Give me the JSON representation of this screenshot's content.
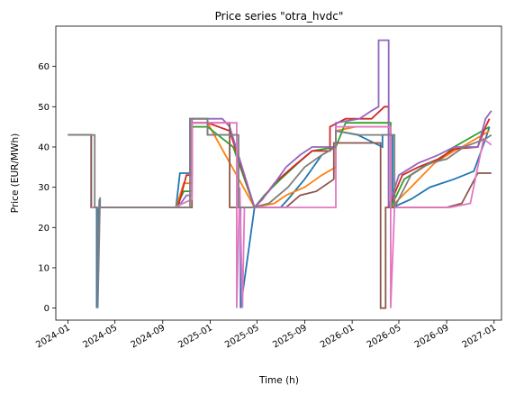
{
  "chart_data": {
    "type": "line",
    "title": "Price series \"otra_hvdc\"",
    "xlabel": "Time (h)",
    "ylabel": "Price (EUR/MWh)",
    "x_ticks": [
      "2024-01",
      "2024-05",
      "2024-09",
      "2025-01",
      "2025-05",
      "2025-09",
      "2026-01",
      "2026-05",
      "2026-09",
      "2027-01"
    ],
    "y_ticks": [
      0,
      10,
      20,
      30,
      40,
      50,
      60
    ],
    "xlim": [
      "2023-12-01",
      "2027-01-20"
    ],
    "ylim": [
      -3,
      70
    ],
    "grid": false,
    "legend": "none",
    "series": [
      {
        "color": "#1f77b4",
        "points": [
          [
            "2024-01-01",
            43
          ],
          [
            "2024-03-01",
            43
          ],
          [
            "2024-03-01",
            25
          ],
          [
            "2024-03-15",
            25
          ],
          [
            "2024-03-15",
            0
          ],
          [
            "2024-03-22",
            27
          ],
          [
            "2024-03-22",
            25
          ],
          [
            "2024-10-05",
            25
          ],
          [
            "2024-10-15",
            33.5
          ],
          [
            "2024-11-10",
            33.5
          ],
          [
            "2024-11-10",
            47
          ],
          [
            "2024-12-25",
            47
          ],
          [
            "2024-12-25",
            43
          ],
          [
            "2025-03-10",
            43
          ],
          [
            "2025-03-10",
            25
          ],
          [
            "2025-03-20",
            25
          ],
          [
            "2025-03-20",
            0
          ],
          [
            "2025-04-25",
            25
          ],
          [
            "2025-07-01",
            25
          ],
          [
            "2025-07-20",
            27
          ],
          [
            "2025-09-01",
            32
          ],
          [
            "2025-10-15",
            38
          ],
          [
            "2025-11-20",
            40
          ],
          [
            "2025-11-20",
            44
          ],
          [
            "2026-01-15",
            43
          ],
          [
            "2026-03-20",
            40
          ],
          [
            "2026-03-20",
            43
          ],
          [
            "2026-04-15",
            43
          ],
          [
            "2026-04-15",
            25
          ],
          [
            "2026-06-01",
            27
          ],
          [
            "2026-07-20",
            30
          ],
          [
            "2026-09-20",
            32
          ],
          [
            "2026-11-10",
            34
          ],
          [
            "2026-12-10",
            42
          ],
          [
            "2026-12-20",
            45
          ]
        ]
      },
      {
        "color": "#ff7f0e",
        "points": [
          [
            "2024-03-01",
            25
          ],
          [
            "2024-10-05",
            25
          ],
          [
            "2024-10-25",
            31
          ],
          [
            "2024-11-15",
            31
          ],
          [
            "2024-11-15",
            46
          ],
          [
            "2024-12-25",
            46
          ],
          [
            "2025-04-25",
            25
          ],
          [
            "2025-06-15",
            26
          ],
          [
            "2025-07-15",
            28
          ],
          [
            "2025-09-01",
            30
          ],
          [
            "2025-10-15",
            33
          ],
          [
            "2025-11-20",
            35
          ],
          [
            "2025-11-20",
            44
          ],
          [
            "2026-01-10",
            45
          ],
          [
            "2026-04-10",
            45
          ],
          [
            "2026-04-10",
            25
          ],
          [
            "2026-06-01",
            30
          ],
          [
            "2026-08-01",
            36
          ],
          [
            "2026-09-20",
            39
          ],
          [
            "2026-10-10",
            40
          ],
          [
            "2026-12-20",
            44
          ]
        ]
      },
      {
        "color": "#2ca02c",
        "points": [
          [
            "2024-03-01",
            25
          ],
          [
            "2024-10-05",
            25
          ],
          [
            "2024-10-25",
            29
          ],
          [
            "2024-11-15",
            29
          ],
          [
            "2024-11-15",
            45
          ],
          [
            "2024-12-25",
            45
          ],
          [
            "2025-03-01",
            40
          ],
          [
            "2025-04-25",
            25
          ],
          [
            "2025-05-20",
            28
          ],
          [
            "2025-07-01",
            32
          ],
          [
            "2025-08-15",
            36
          ],
          [
            "2025-09-20",
            39
          ],
          [
            "2025-11-20",
            40
          ],
          [
            "2025-12-15",
            46
          ],
          [
            "2026-01-20",
            46
          ],
          [
            "2026-04-10",
            46
          ],
          [
            "2026-04-10",
            25
          ],
          [
            "2026-05-15",
            32
          ],
          [
            "2026-07-01",
            35
          ],
          [
            "2026-08-15",
            37
          ],
          [
            "2026-09-20",
            40
          ],
          [
            "2026-12-20",
            45
          ]
        ]
      },
      {
        "color": "#d62728",
        "points": [
          [
            "2024-03-01",
            25
          ],
          [
            "2024-10-10",
            25
          ],
          [
            "2024-11-01",
            33
          ],
          [
            "2024-11-15",
            33
          ],
          [
            "2024-11-15",
            46
          ],
          [
            "2024-12-25",
            46
          ],
          [
            "2025-02-20",
            44
          ],
          [
            "2025-04-25",
            25
          ],
          [
            "2025-05-15",
            27
          ],
          [
            "2025-06-15",
            31
          ],
          [
            "2025-08-01",
            35
          ],
          [
            "2025-09-20",
            39
          ],
          [
            "2025-11-05",
            39
          ],
          [
            "2025-11-05",
            45
          ],
          [
            "2025-12-15",
            47
          ],
          [
            "2026-02-20",
            47
          ],
          [
            "2026-03-25",
            50
          ],
          [
            "2026-04-05",
            50
          ],
          [
            "2026-04-05",
            25
          ],
          [
            "2026-05-10",
            33
          ],
          [
            "2026-06-20",
            35
          ],
          [
            "2026-08-10",
            37
          ],
          [
            "2026-09-20",
            39.5
          ],
          [
            "2026-11-20",
            40
          ],
          [
            "2026-12-10",
            45
          ],
          [
            "2026-12-20",
            47
          ]
        ]
      },
      {
        "color": "#9467bd",
        "points": [
          [
            "2024-03-01",
            25
          ],
          [
            "2024-10-10",
            25
          ],
          [
            "2024-11-01",
            28
          ],
          [
            "2024-11-15",
            28
          ],
          [
            "2024-11-15",
            47
          ],
          [
            "2024-12-25",
            47
          ],
          [
            "2025-02-01",
            47
          ],
          [
            "2025-02-20",
            45
          ],
          [
            "2025-04-25",
            25
          ],
          [
            "2025-06-01",
            29
          ],
          [
            "2025-07-15",
            35
          ],
          [
            "2025-08-20",
            38
          ],
          [
            "2025-09-20",
            40
          ],
          [
            "2025-11-20",
            40
          ],
          [
            "2025-11-20",
            46
          ],
          [
            "2026-01-20",
            47
          ],
          [
            "2026-02-20",
            49
          ],
          [
            "2026-03-10",
            50
          ],
          [
            "2026-03-10",
            66.5
          ],
          [
            "2026-04-05",
            66.5
          ],
          [
            "2026-04-05",
            25
          ],
          [
            "2026-05-01",
            33
          ],
          [
            "2026-06-20",
            36
          ],
          [
            "2026-08-10",
            38
          ],
          [
            "2026-09-20",
            40
          ],
          [
            "2026-11-20",
            40
          ],
          [
            "2026-12-10",
            47
          ],
          [
            "2026-12-25",
            49
          ]
        ]
      },
      {
        "color": "#8c564b",
        "points": [
          [
            "2024-01-01",
            43
          ],
          [
            "2024-03-01",
            43
          ],
          [
            "2024-03-01",
            25
          ],
          [
            "2024-10-15",
            25
          ],
          [
            "2024-11-15",
            25
          ],
          [
            "2024-11-15",
            46
          ],
          [
            "2024-12-25",
            46
          ],
          [
            "2025-02-20",
            46
          ],
          [
            "2025-02-20",
            25
          ],
          [
            "2025-07-15",
            25
          ],
          [
            "2025-08-20",
            28
          ],
          [
            "2025-10-01",
            29
          ],
          [
            "2025-11-15",
            32
          ],
          [
            "2025-11-15",
            41
          ],
          [
            "2026-03-15",
            41
          ],
          [
            "2026-03-15",
            0
          ],
          [
            "2026-03-28",
            0
          ],
          [
            "2026-03-28",
            25
          ],
          [
            "2026-05-15",
            25
          ],
          [
            "2026-09-01",
            25
          ],
          [
            "2026-10-10",
            26
          ],
          [
            "2026-11-20",
            33.5
          ],
          [
            "2026-12-25",
            33.5
          ]
        ]
      },
      {
        "color": "#e377c2",
        "points": [
          [
            "2024-03-01",
            25
          ],
          [
            "2024-10-01",
            25
          ],
          [
            "2024-11-15",
            27
          ],
          [
            "2024-11-15",
            46
          ],
          [
            "2024-12-25",
            46
          ],
          [
            "2025-03-10",
            46
          ],
          [
            "2025-03-10",
            0
          ],
          [
            "2025-03-18",
            30
          ],
          [
            "2025-03-25",
            0
          ],
          [
            "2025-03-30",
            25
          ],
          [
            "2025-09-01",
            25
          ],
          [
            "2025-11-20",
            25
          ],
          [
            "2025-11-20",
            45
          ],
          [
            "2026-04-10",
            45
          ],
          [
            "2026-04-10",
            0
          ],
          [
            "2026-04-20",
            25
          ],
          [
            "2026-09-10",
            25
          ],
          [
            "2026-11-01",
            26
          ],
          [
            "2026-12-05",
            42
          ],
          [
            "2026-12-25",
            40.5
          ]
        ]
      },
      {
        "color": "#7f7f7f",
        "points": [
          [
            "2024-01-01",
            43
          ],
          [
            "2024-03-10",
            43
          ],
          [
            "2024-03-10",
            25
          ],
          [
            "2024-03-18",
            25
          ],
          [
            "2024-03-18",
            0
          ],
          [
            "2024-03-24",
            27.5
          ],
          [
            "2024-03-24",
            25
          ],
          [
            "2024-11-10",
            25
          ],
          [
            "2024-11-10",
            47
          ],
          [
            "2024-12-25",
            47
          ],
          [
            "2024-12-25",
            43
          ],
          [
            "2025-03-15",
            43
          ],
          [
            "2025-03-15",
            25
          ],
          [
            "2025-04-20",
            25
          ],
          [
            "2025-06-01",
            26
          ],
          [
            "2025-07-20",
            30
          ],
          [
            "2025-09-01",
            35
          ],
          [
            "2025-10-15",
            38
          ],
          [
            "2025-11-20",
            40
          ],
          [
            "2025-11-20",
            44
          ],
          [
            "2026-01-20",
            43
          ],
          [
            "2026-04-20",
            43
          ],
          [
            "2026-04-20",
            25
          ],
          [
            "2026-06-01",
            33
          ],
          [
            "2026-07-20",
            36
          ],
          [
            "2026-09-01",
            37
          ],
          [
            "2026-10-15",
            40
          ],
          [
            "2026-12-10",
            42
          ],
          [
            "2026-12-25",
            43
          ]
        ]
      }
    ]
  }
}
